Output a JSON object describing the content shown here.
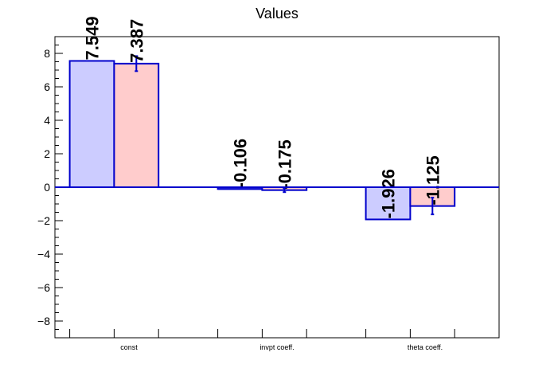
{
  "chart_data": {
    "type": "bar",
    "title": "Values",
    "xlabel": "",
    "ylabel": "",
    "ylim": [
      -9,
      9
    ],
    "yticks": [
      -8,
      -6,
      -4,
      -2,
      0,
      2,
      4,
      6,
      8
    ],
    "categories": [
      "const",
      "invpt coeff.",
      "theta coeff."
    ],
    "series": [
      {
        "values": [
          7.549,
          -0.106,
          -1.926
        ],
        "labels": [
          "7.549",
          "-0.106",
          "-1.926"
        ],
        "errors": [
          0,
          0,
          0
        ],
        "fill": "#ccccff",
        "stroke": "#0000cc"
      },
      {
        "values": [
          7.387,
          -0.175,
          -1.125
        ],
        "labels": [
          "7.387",
          "-0.175",
          "-1.125"
        ],
        "errors": [
          0.45,
          0.12,
          0.5
        ],
        "fill": "#ffcccc",
        "stroke": "#0000cc"
      }
    ],
    "grid": false,
    "legend": "none",
    "colors": {
      "axis": "#000000",
      "zero_line": "#0000cc"
    }
  }
}
